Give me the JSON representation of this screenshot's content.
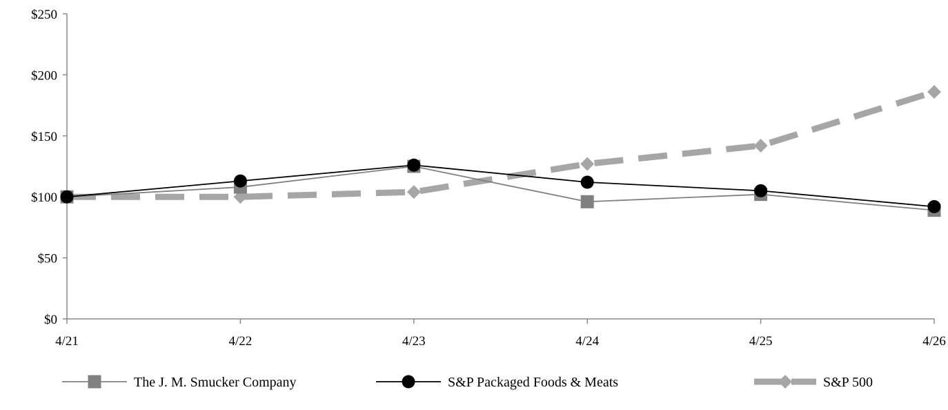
{
  "chart_data": {
    "type": "line",
    "title": "",
    "xlabel": "",
    "ylabel": "",
    "categories": [
      "4/21",
      "4/22",
      "4/23",
      "4/24",
      "4/25",
      "4/26"
    ],
    "ylim": [
      0,
      250
    ],
    "yticks": [
      0,
      50,
      100,
      150,
      200,
      250
    ],
    "ytick_labels": [
      "$0",
      "$50",
      "$100",
      "$150",
      "$200",
      "$250"
    ],
    "grid": false,
    "legend_position": "bottom",
    "series": [
      {
        "name": "The J. M. Smucker Company",
        "values": [
          100,
          108,
          125,
          96,
          102,
          89
        ],
        "marker": "square",
        "color": "#808080",
        "line_color": "#808080",
        "line_style": "solid"
      },
      {
        "name": "S&P Packaged Foods & Meats",
        "values": [
          100,
          113,
          126,
          112,
          105,
          92
        ],
        "marker": "circle",
        "color": "#000000",
        "line_color": "#000000",
        "line_style": "solid"
      },
      {
        "name": "S&P 500",
        "values": [
          100,
          100,
          104,
          127,
          142,
          186
        ],
        "marker": "diamond",
        "color": "#a6a6a6",
        "line_color": "#a6a6a6",
        "line_style": "dashed"
      }
    ]
  }
}
